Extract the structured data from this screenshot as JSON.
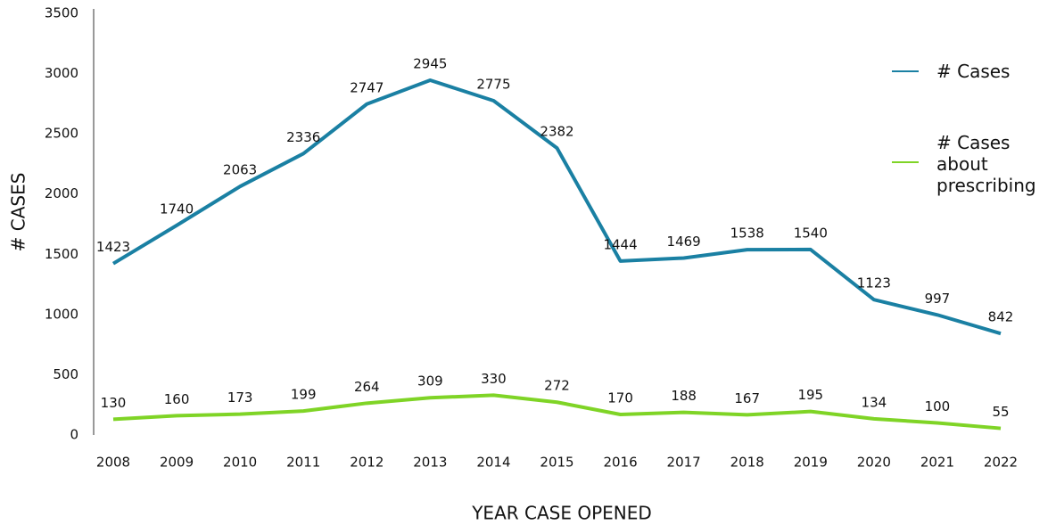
{
  "chart_data": {
    "type": "line",
    "xlabel": "YEAR CASE OPENED",
    "ylabel": "# CASES",
    "categories": [
      "2008",
      "2009",
      "2010",
      "2011",
      "2012",
      "2013",
      "2014",
      "2015",
      "2016",
      "2017",
      "2018",
      "2019",
      "2020",
      "2021",
      "2022"
    ],
    "series": [
      {
        "name": "# Cases",
        "color": "#1a80a3",
        "values": [
          1423,
          1740,
          2063,
          2336,
          2747,
          2945,
          2775,
          2382,
          1444,
          1469,
          1538,
          1540,
          1123,
          997,
          842
        ]
      },
      {
        "name": "# Cases about prescribing",
        "color": "#7fd426",
        "values": [
          130,
          160,
          173,
          199,
          264,
          309,
          330,
          272,
          170,
          188,
          167,
          195,
          134,
          100,
          55
        ]
      }
    ],
    "ylim": [
      0,
      3500
    ],
    "yticks": [
      0,
      500,
      1000,
      1500,
      2000,
      2500,
      3000,
      3500
    ],
    "grid": false,
    "legend": "right"
  }
}
